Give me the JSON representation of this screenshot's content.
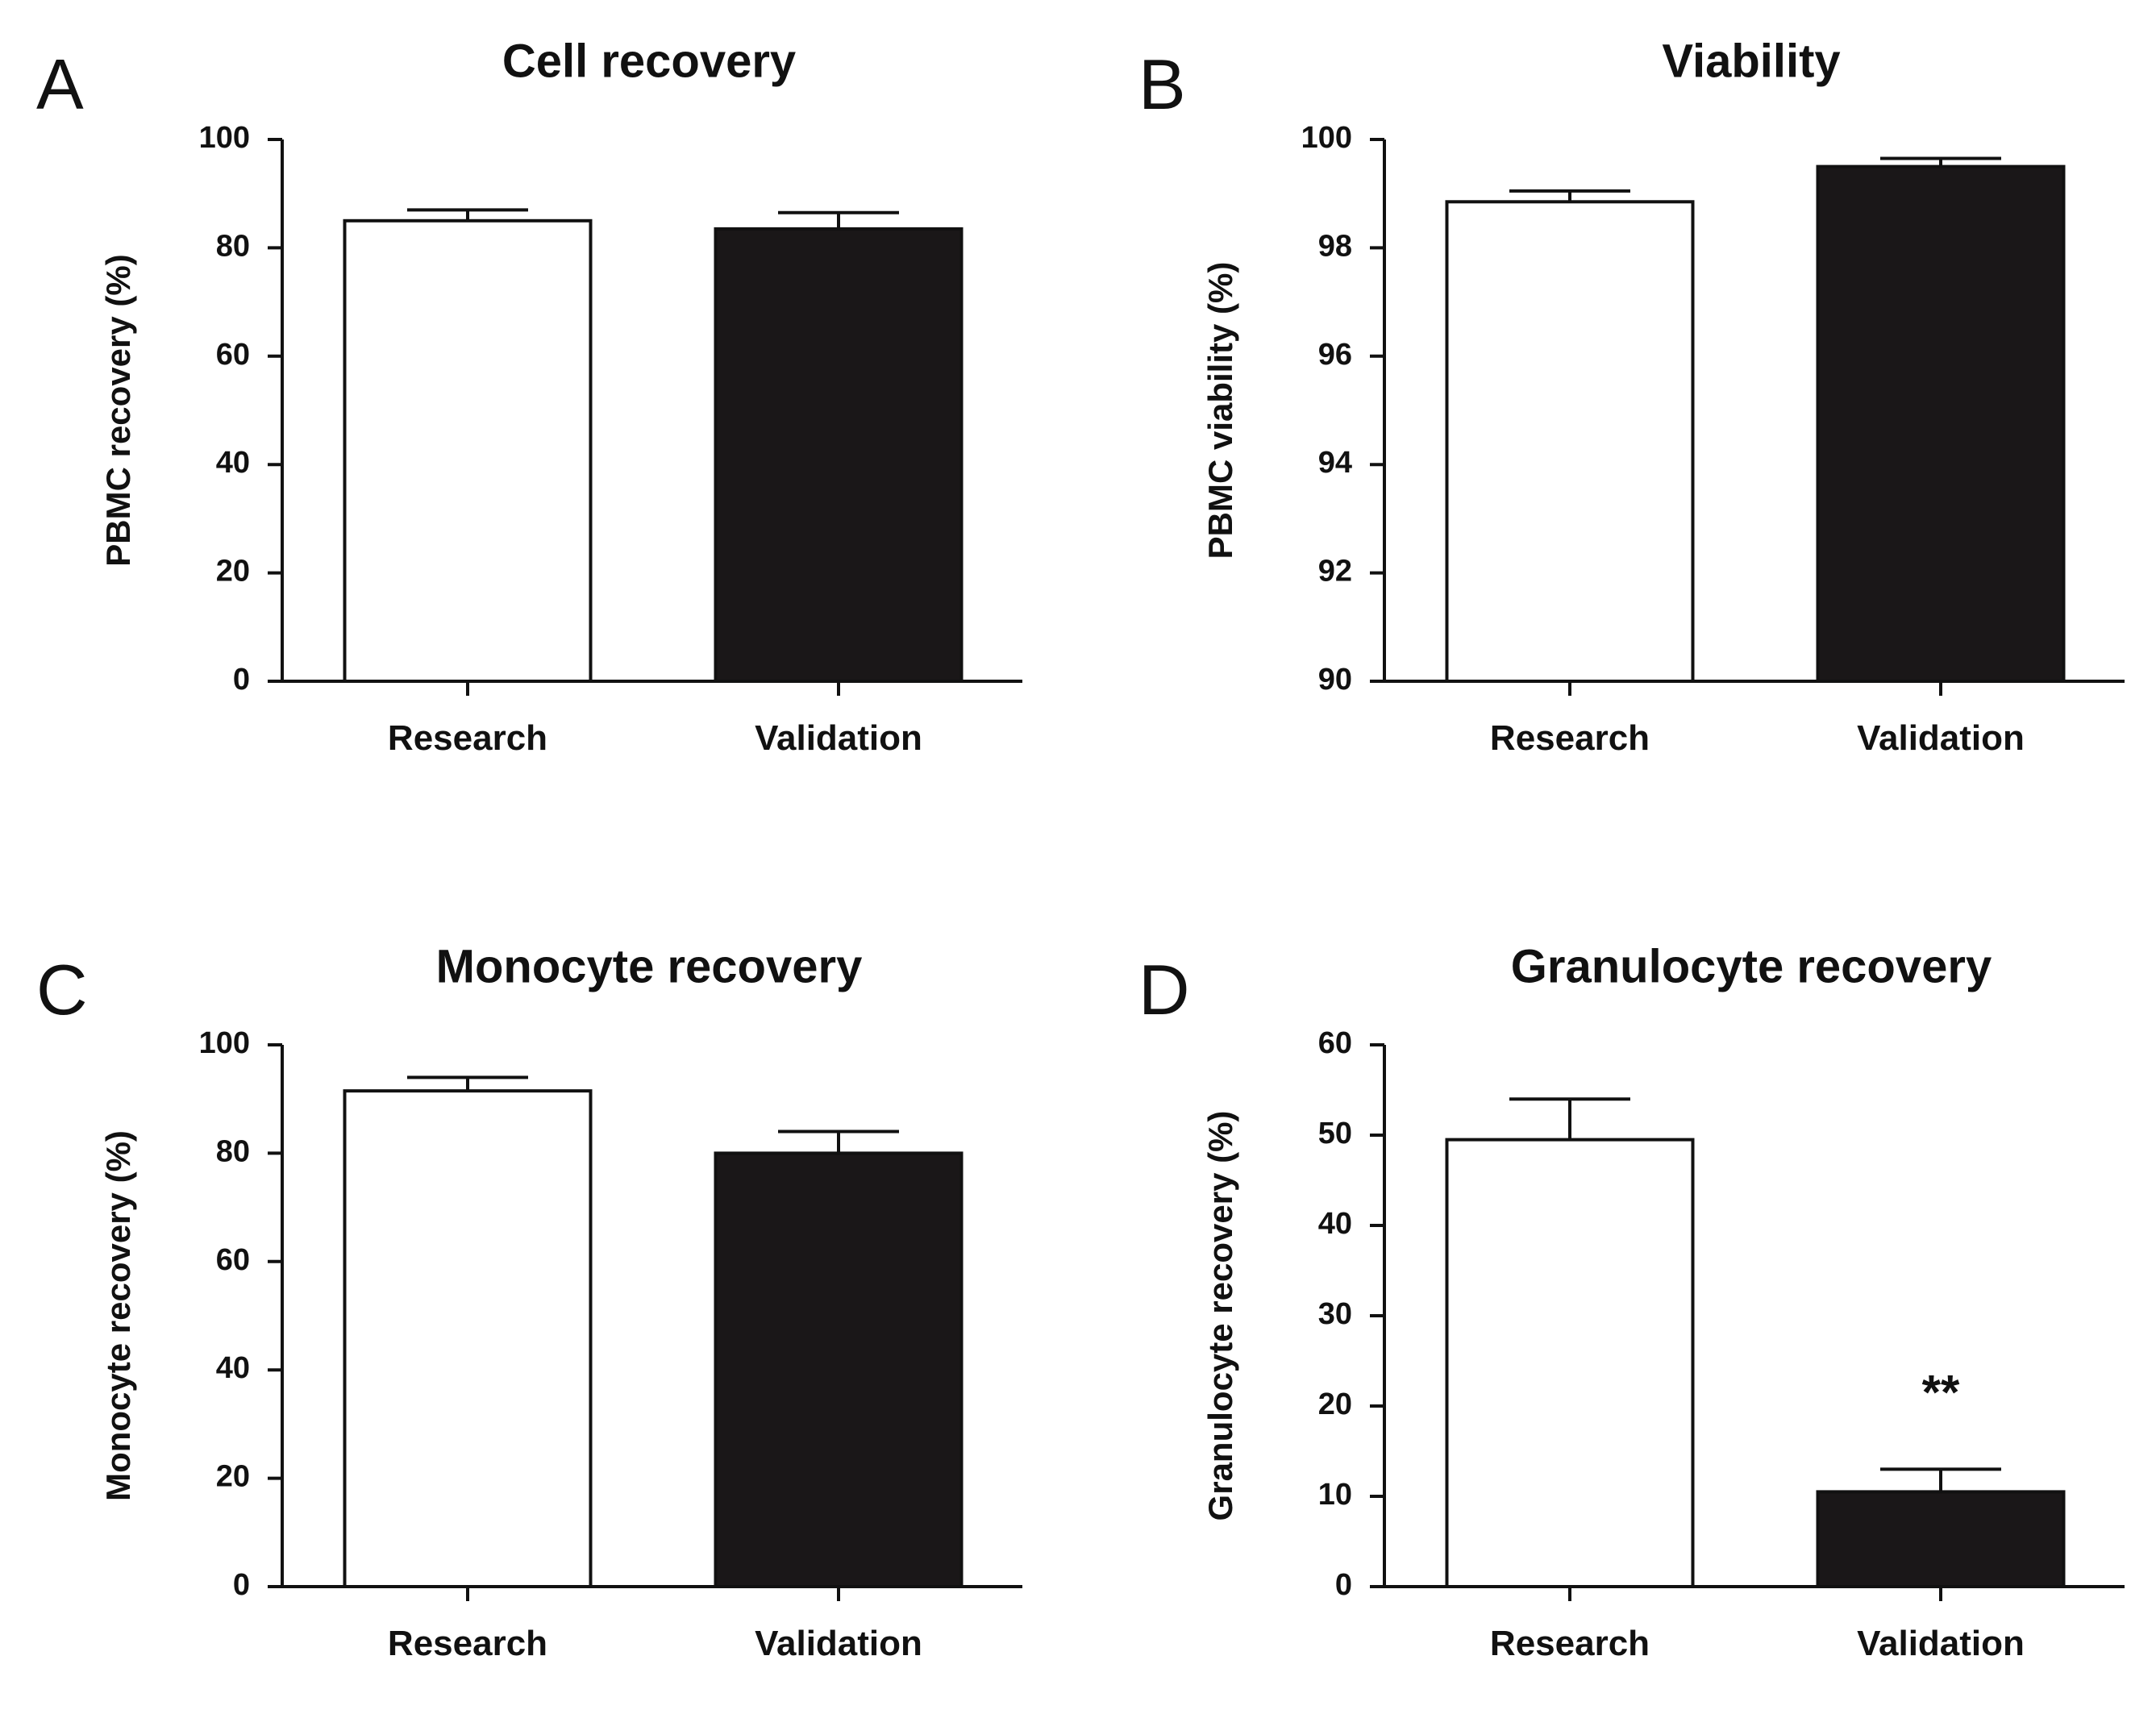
{
  "chart_data": [
    {
      "panel": "A",
      "type": "bar",
      "title": "Cell recovery",
      "xlabel": "",
      "ylabel": "PBMC recovery (%)",
      "ylim": [
        0,
        100
      ],
      "yticks": [
        0,
        20,
        40,
        60,
        80,
        100
      ],
      "categories": [
        "Research",
        "Validation"
      ],
      "values": [
        85,
        83.5
      ],
      "errors": [
        2,
        3
      ],
      "colors": [
        "#ffffff",
        "#1a1718"
      ],
      "annotations": [],
      "grid": false
    },
    {
      "panel": "B",
      "type": "bar",
      "title": "Viability",
      "xlabel": "",
      "ylabel": "PBMC viability (%)",
      "ylim": [
        90,
        100
      ],
      "yticks": [
        90,
        92,
        94,
        96,
        98,
        100
      ],
      "categories": [
        "Research",
        "Validation"
      ],
      "values": [
        98.85,
        99.5
      ],
      "errors": [
        0.2,
        0.15
      ],
      "colors": [
        "#ffffff",
        "#1a1718"
      ],
      "annotations": [],
      "grid": false
    },
    {
      "panel": "C",
      "type": "bar",
      "title": "Monocyte recovery",
      "xlabel": "",
      "ylabel": "Monocyte recovery (%)",
      "ylim": [
        0,
        100
      ],
      "yticks": [
        0,
        20,
        40,
        60,
        80,
        100
      ],
      "categories": [
        "Research",
        "Validation"
      ],
      "values": [
        91.5,
        80
      ],
      "errors": [
        2.5,
        4
      ],
      "colors": [
        "#ffffff",
        "#1a1718"
      ],
      "annotations": [],
      "grid": false
    },
    {
      "panel": "D",
      "type": "bar",
      "title": "Granulocyte recovery",
      "xlabel": "",
      "ylabel": "Granulocyte recovery (%)",
      "ylim": [
        0,
        60
      ],
      "yticks": [
        0,
        10,
        20,
        30,
        40,
        50,
        60
      ],
      "categories": [
        "Research",
        "Validation"
      ],
      "values": [
        49.5,
        10.5
      ],
      "errors": [
        4.5,
        2.5
      ],
      "colors": [
        "#ffffff",
        "#1a1718"
      ],
      "annotations": [
        {
          "category": "Validation",
          "text": "**"
        }
      ],
      "grid": false
    }
  ]
}
